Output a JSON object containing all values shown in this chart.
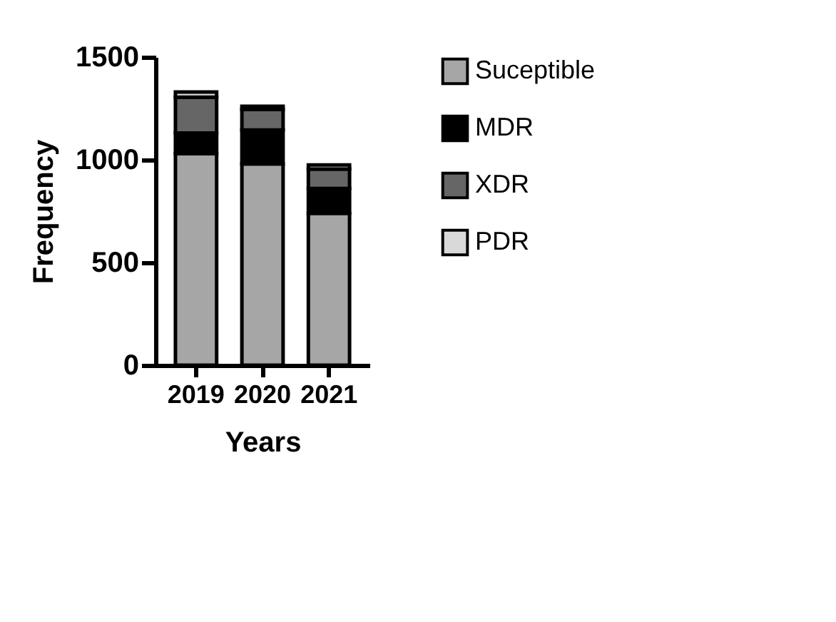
{
  "chart_data": {
    "type": "bar",
    "stacked": true,
    "xlabel": "Years",
    "ylabel": "Frequency",
    "categories": [
      "2019",
      "2020",
      "2021"
    ],
    "series": [
      {
        "name": "Suceptible",
        "color": "#a6a6a6",
        "values": [
          1030,
          980,
          740
        ]
      },
      {
        "name": "MDR",
        "color": "#000000",
        "values": [
          100,
          165,
          120
        ]
      },
      {
        "name": "XDR",
        "color": "#666666",
        "values": [
          175,
          100,
          95
        ]
      },
      {
        "name": "PDR",
        "color": "#d9d9d9",
        "values": [
          25,
          15,
          20
        ]
      }
    ],
    "ylim": [
      0,
      1500
    ],
    "yticks": [
      0,
      500,
      1000,
      1500
    ],
    "grid": false,
    "legend": "top right"
  }
}
